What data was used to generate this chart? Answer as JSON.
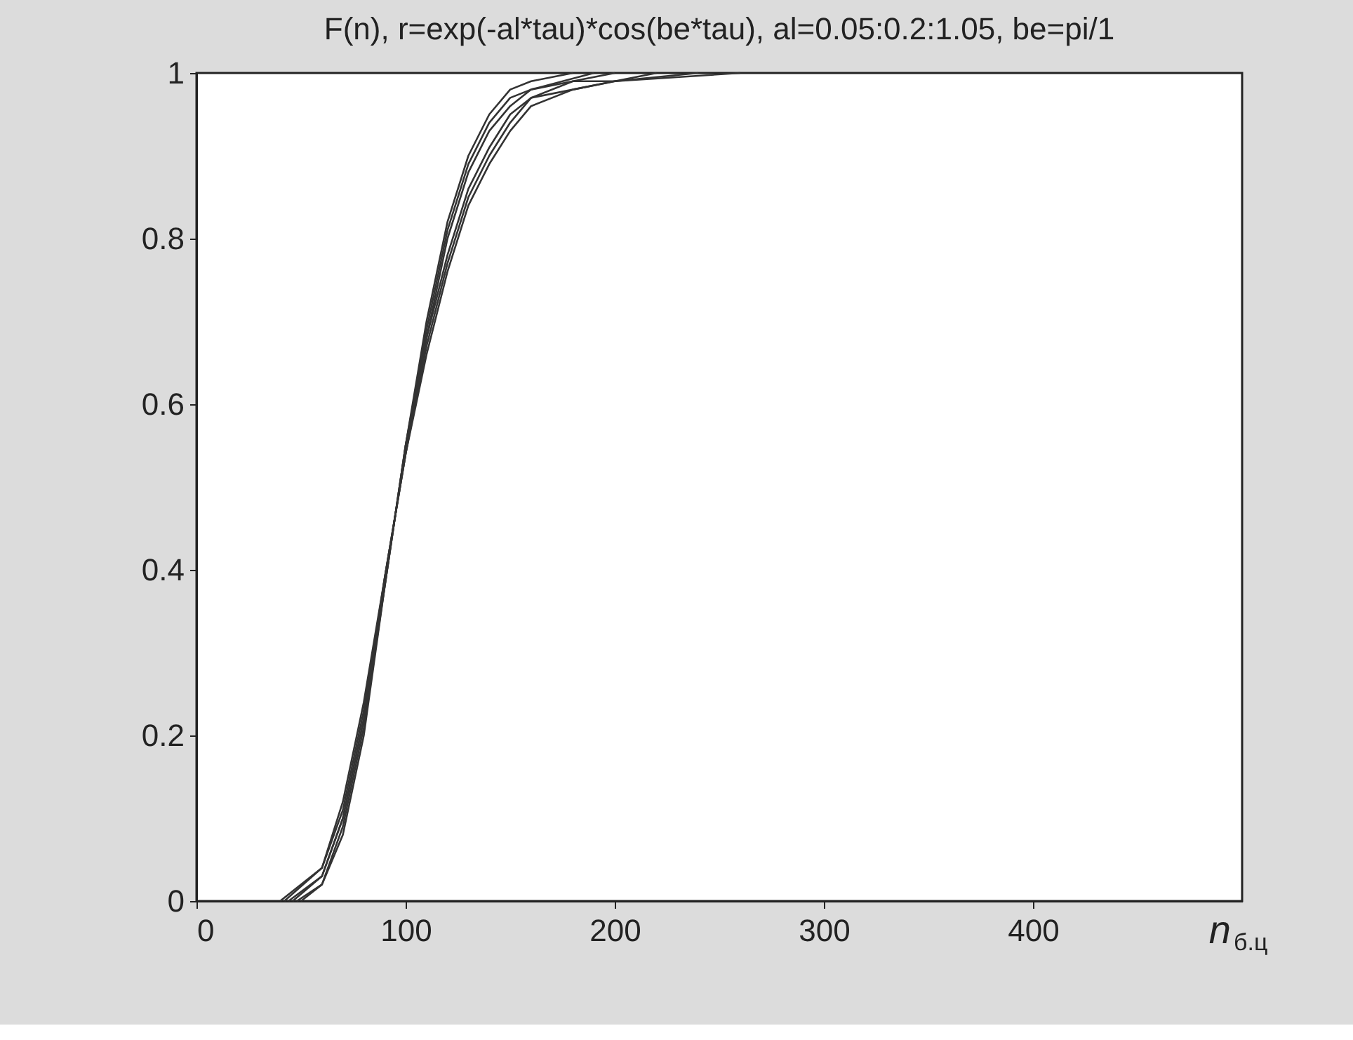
{
  "chart_data": {
    "type": "line",
    "title": "F(n), r=exp(-al*tau)*cos(be*tau), al=0.05:0.2:1.05,  be=pi/1",
    "xlabel": "n$_{б.ц}$",
    "series": [
      {
        "color": "#333333",
        "x": [
          50,
          60,
          70,
          80,
          90,
          100,
          110,
          120,
          130,
          140,
          150,
          160,
          180
        ],
        "values": [
          0,
          0.02,
          0.08,
          0.2,
          0.38,
          0.55,
          0.7,
          0.82,
          0.9,
          0.95,
          0.98,
          0.99,
          1
        ]
      },
      {
        "color": "#333333",
        "x": [
          48,
          60,
          70,
          80,
          90,
          100,
          110,
          120,
          130,
          140,
          150,
          160,
          190
        ],
        "values": [
          0,
          0.02,
          0.09,
          0.21,
          0.38,
          0.55,
          0.69,
          0.81,
          0.89,
          0.94,
          0.97,
          0.98,
          1
        ]
      },
      {
        "color": "#333333",
        "x": [
          46,
          60,
          70,
          80,
          90,
          100,
          110,
          120,
          130,
          140,
          150,
          160,
          180,
          200
        ],
        "values": [
          0,
          0.03,
          0.1,
          0.22,
          0.38,
          0.55,
          0.68,
          0.8,
          0.88,
          0.93,
          0.96,
          0.98,
          0.99,
          1
        ]
      },
      {
        "color": "#333333",
        "x": [
          44,
          60,
          70,
          80,
          90,
          100,
          110,
          120,
          130,
          140,
          150,
          160,
          180,
          200,
          220
        ],
        "values": [
          0,
          0.03,
          0.1,
          0.22,
          0.39,
          0.54,
          0.68,
          0.78,
          0.86,
          0.91,
          0.95,
          0.97,
          0.99,
          0.99,
          1
        ]
      },
      {
        "color": "#333333",
        "x": [
          42,
          60,
          70,
          80,
          90,
          100,
          110,
          120,
          130,
          140,
          150,
          160,
          180,
          200,
          240
        ],
        "values": [
          0,
          0.04,
          0.11,
          0.23,
          0.39,
          0.54,
          0.67,
          0.77,
          0.85,
          0.9,
          0.94,
          0.97,
          0.98,
          0.99,
          1
        ]
      },
      {
        "color": "#333333",
        "x": [
          40,
          60,
          70,
          80,
          90,
          100,
          110,
          120,
          130,
          140,
          150,
          160,
          180,
          200,
          260
        ],
        "values": [
          0,
          0.04,
          0.12,
          0.24,
          0.39,
          0.54,
          0.66,
          0.76,
          0.84,
          0.89,
          0.93,
          0.96,
          0.98,
          0.99,
          1
        ]
      }
    ],
    "xlim": [
      0,
      500
    ],
    "xticks": [
      0,
      100,
      200,
      300,
      400
    ],
    "ylim": [
      0,
      1
    ],
    "yticks": [
      0,
      0.2,
      0.4,
      0.6,
      0.8,
      1
    ],
    "grid": false,
    "legend": false,
    "marker": "none",
    "line_style": "solid"
  }
}
